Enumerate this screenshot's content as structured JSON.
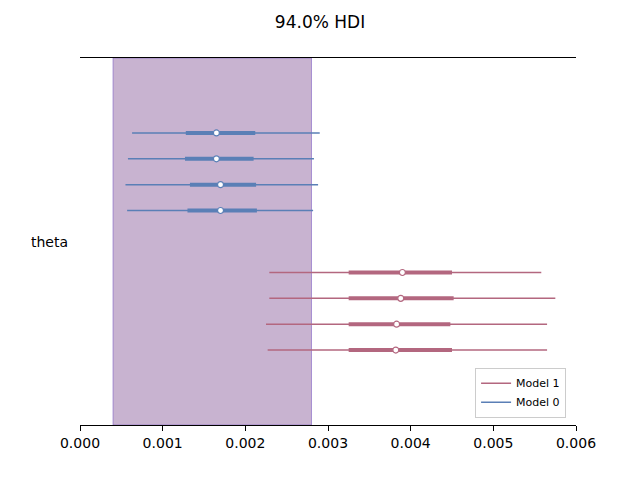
{
  "chart_data": {
    "type": "forest",
    "title": "94.0% HDI",
    "ylabel": "theta",
    "hdi_band": [
      0.0004,
      0.0028
    ],
    "xlim": [
      0,
      0.006
    ],
    "xticks": [
      {
        "value": 0,
        "label": "0.000"
      },
      {
        "value": 0.001,
        "label": "0.001"
      },
      {
        "value": 0.002,
        "label": "0.002"
      },
      {
        "value": 0.003,
        "label": "0.003"
      },
      {
        "value": 0.004,
        "label": "0.004"
      },
      {
        "value": 0.005,
        "label": "0.005"
      },
      {
        "value": 0.006,
        "label": "0.006"
      }
    ],
    "legend": "lower right",
    "grid": false,
    "series": [
      {
        "name": "Model 0",
        "color": "#5a7fb6",
        "values": [
          0.00165,
          0.00165,
          0.0017,
          0.0017
        ],
        "inner": [
          [
            0.00128,
            0.00212
          ],
          [
            0.00127,
            0.0021
          ],
          [
            0.00133,
            0.00213
          ],
          [
            0.0013,
            0.00214
          ]
        ],
        "hdi": [
          [
            0.00063,
            0.0029
          ],
          [
            0.00058,
            0.00283
          ],
          [
            0.00055,
            0.00288
          ],
          [
            0.00057,
            0.00282
          ]
        ]
      },
      {
        "name": "Model 1",
        "color": "#b3677f",
        "values": [
          0.0039,
          0.00388,
          0.00383,
          0.00382
        ],
        "inner": [
          [
            0.00325,
            0.0045
          ],
          [
            0.00325,
            0.00452
          ],
          [
            0.00325,
            0.00448
          ],
          [
            0.00325,
            0.0045
          ]
        ],
        "hdi": [
          [
            0.00229,
            0.00558
          ],
          [
            0.00229,
            0.00575
          ],
          [
            0.00225,
            0.00565
          ],
          [
            0.00227,
            0.00565
          ]
        ]
      }
    ]
  }
}
